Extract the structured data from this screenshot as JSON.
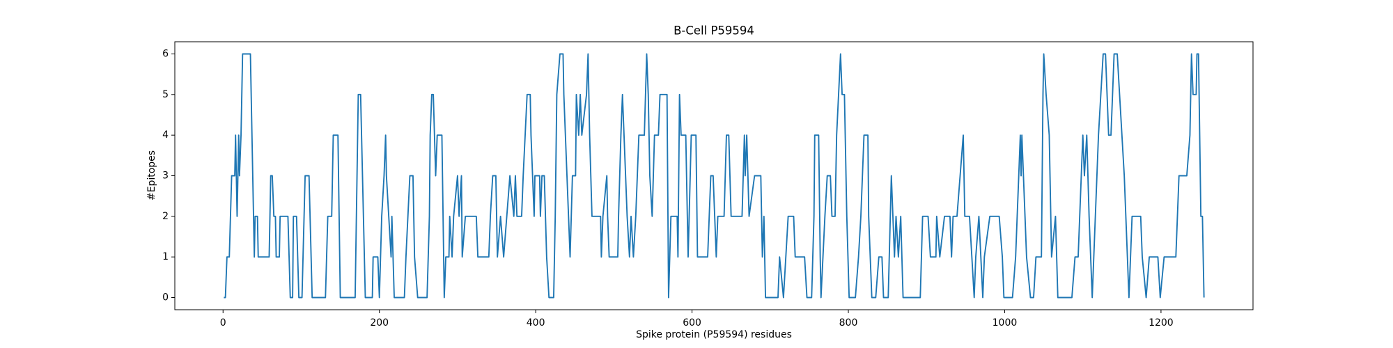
{
  "chart_data": {
    "type": "line",
    "title": "B-Cell P59594",
    "xlabel": "Spike protein (P59594) residues",
    "ylabel": "#Epitopes",
    "color": "#1f77b4",
    "x": [
      1,
      3,
      5,
      8,
      11,
      15,
      16,
      18,
      20,
      21,
      23,
      25,
      35,
      37,
      40,
      41,
      44,
      45,
      59,
      60,
      61,
      63,
      65,
      67,
      68,
      72,
      73,
      83,
      86,
      89,
      90,
      94,
      97,
      101,
      105,
      110,
      114,
      131,
      134,
      139,
      141,
      147,
      150,
      169,
      173,
      176,
      182,
      191,
      192,
      198,
      200,
      203,
      206,
      208,
      209,
      212,
      215,
      216,
      219,
      232,
      234,
      239,
      243,
      245,
      249,
      261,
      264,
      265,
      267,
      269,
      272,
      274,
      280,
      283,
      285,
      289,
      290,
      293,
      295,
      300,
      302,
      305,
      306,
      310,
      324,
      326,
      340,
      342,
      345,
      349,
      351,
      355,
      359,
      367,
      372,
      374,
      376,
      382,
      384,
      389,
      393,
      394,
      398,
      399,
      405,
      406,
      408,
      411,
      414,
      417,
      423,
      425,
      427,
      431,
      435,
      436,
      440,
      442,
      444,
      447,
      451,
      452,
      455,
      457,
      459,
      465,
      467,
      469,
      472,
      483,
      484,
      486,
      491,
      492,
      494,
      505,
      506,
      509,
      511,
      515,
      517,
      520,
      522,
      525,
      528,
      532,
      539,
      542,
      544,
      546,
      549,
      552,
      557,
      559,
      568,
      570,
      573,
      581,
      582,
      584,
      586,
      592,
      595,
      599,
      605,
      607,
      620,
      624,
      627,
      631,
      633,
      641,
      644,
      647,
      650,
      664,
      667,
      668,
      670,
      673,
      680,
      688,
      690,
      692,
      694,
      710,
      712,
      717,
      723,
      730,
      732,
      744,
      747,
      753,
      756,
      757,
      762,
      764,
      765,
      770,
      773,
      777,
      779,
      783,
      785,
      790,
      792,
      795,
      798,
      801,
      809,
      813,
      816,
      820,
      825,
      826,
      830,
      835,
      839,
      843,
      845,
      851,
      855,
      859,
      861,
      864,
      867,
      870,
      892,
      895,
      902,
      905,
      912,
      913,
      917,
      923,
      930,
      932,
      934,
      939,
      947,
      949,
      955,
      961,
      963,
      967,
      972,
      974,
      981,
      993,
      997,
      999,
      1010,
      1014,
      1016,
      1018,
      1020,
      1021,
      1022,
      1026,
      1028,
      1033,
      1037,
      1040,
      1047,
      1049,
      1050,
      1053,
      1057,
      1060,
      1065,
      1068,
      1086,
      1090,
      1094,
      1096,
      1100,
      1102,
      1105,
      1108,
      1112,
      1116,
      1120,
      1123,
      1126,
      1129,
      1133,
      1136,
      1140,
      1144,
      1147,
      1153,
      1157,
      1159,
      1163,
      1174,
      1176,
      1181,
      1185,
      1196,
      1199,
      1204,
      1219,
      1223,
      1233,
      1237,
      1239,
      1241,
      1245,
      1246,
      1248,
      1251,
      1253,
      1255
    ],
    "values": [
      0,
      0,
      1,
      1,
      3,
      3,
      4,
      2,
      4,
      3,
      4,
      6,
      6,
      4,
      1,
      2,
      2,
      1,
      1,
      2,
      3,
      3,
      2,
      2,
      1,
      1,
      2,
      2,
      0,
      0,
      2,
      2,
      0,
      0,
      3,
      3,
      0,
      0,
      2,
      2,
      4,
      4,
      0,
      0,
      5,
      5,
      0,
      0,
      1,
      1,
      0,
      2,
      3,
      4,
      3,
      2,
      1,
      2,
      0,
      0,
      1,
      3,
      3,
      1,
      0,
      0,
      2,
      4,
      5,
      5,
      3,
      4,
      4,
      0,
      1,
      1,
      2,
      1,
      2,
      3,
      2,
      3,
      1,
      2,
      2,
      1,
      1,
      2,
      3,
      3,
      1,
      2,
      1,
      3,
      2,
      3,
      2,
      2,
      3,
      5,
      5,
      4,
      2,
      3,
      3,
      2,
      3,
      3,
      1,
      0,
      0,
      2,
      5,
      6,
      6,
      5,
      3,
      2,
      1,
      3,
      3,
      5,
      4,
      5,
      4,
      5,
      6,
      4,
      2,
      2,
      1,
      2,
      3,
      2,
      1,
      1,
      2,
      4,
      5,
      3,
      2,
      1,
      2,
      1,
      2,
      4,
      4,
      6,
      5,
      3,
      2,
      4,
      4,
      5,
      5,
      0,
      2,
      2,
      1,
      5,
      4,
      4,
      1,
      4,
      4,
      1,
      1,
      3,
      3,
      1,
      2,
      2,
      4,
      4,
      2,
      2,
      4,
      3,
      4,
      2,
      3,
      3,
      1,
      2,
      0,
      0,
      1,
      0,
      2,
      2,
      1,
      1,
      0,
      0,
      2,
      4,
      4,
      1,
      0,
      2,
      3,
      3,
      2,
      2,
      4,
      6,
      5,
      5,
      2,
      0,
      0,
      1,
      2,
      4,
      4,
      2,
      0,
      0,
      1,
      1,
      0,
      0,
      3,
      1,
      2,
      1,
      2,
      0,
      0,
      2,
      2,
      1,
      1,
      2,
      1,
      2,
      2,
      1,
      2,
      2,
      4,
      2,
      2,
      0,
      1,
      2,
      0,
      1,
      2,
      2,
      1,
      0,
      0,
      1,
      2,
      3,
      4,
      3,
      4,
      2,
      1,
      0,
      0,
      1,
      1,
      5,
      6,
      5,
      4,
      1,
      2,
      0,
      0,
      1,
      1,
      2,
      4,
      3,
      4,
      2,
      0,
      2,
      4,
      5,
      6,
      6,
      4,
      4,
      6,
      6,
      5,
      3,
      1,
      0,
      2,
      2,
      1,
      0,
      1,
      1,
      0,
      1,
      1,
      3,
      3,
      4,
      6,
      5,
      5,
      6,
      6,
      2,
      2,
      0
    ],
    "xlim": [
      -61.7,
      1317.7
    ],
    "xticks": [
      0,
      200,
      400,
      600,
      800,
      1000,
      1200
    ],
    "ylim": [
      -0.3,
      6.3
    ],
    "yticks": [
      0,
      1,
      2,
      3,
      4,
      5,
      6
    ]
  }
}
